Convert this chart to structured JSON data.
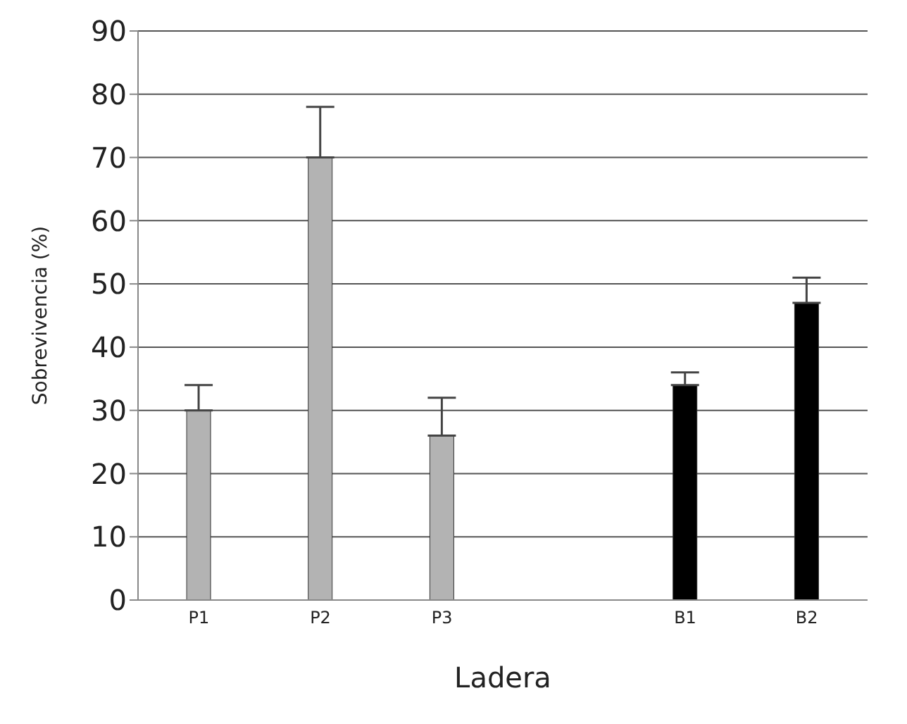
{
  "chart_data": {
    "type": "bar",
    "xlabel": "Ladera",
    "ylabel": "Sobrevivencia (%)",
    "categories": [
      "P1",
      "P2",
      "P3",
      null,
      "B1",
      "B2"
    ],
    "values": [
      30,
      70,
      26,
      null,
      34,
      47
    ],
    "colors": [
      "#b3b3b3",
      "#b3b3b3",
      "#b3b3b3",
      "#b3b3b3",
      "#000000",
      "#000000"
    ],
    "errors": [
      [
        30,
        34
      ],
      [
        70,
        78
      ],
      [
        26,
        32
      ],
      null,
      [
        34,
        36
      ],
      [
        47,
        51
      ]
    ],
    "ylim": [
      0,
      90
    ],
    "yticks": [
      0,
      10,
      20,
      30,
      40,
      50,
      60,
      70,
      80,
      90
    ],
    "grid": "y",
    "legend": false
  }
}
